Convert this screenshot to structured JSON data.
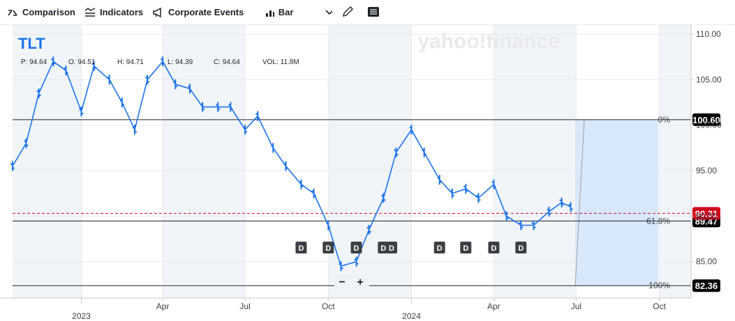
{
  "toolbar": {
    "comparison": "Comparison",
    "indicators": "Indicators",
    "corporate_events": "Corporate Events",
    "chart_type": "Bar"
  },
  "watermark": "yahoo!finance",
  "symbol": "TLT",
  "ohlc": {
    "o": "O: 94.64",
    "h": "H: 94.71",
    "l": "L: 94.39",
    "c": "C: 94.64",
    "vol": "VOL: 11.8M",
    "p_label": "P: 94.64",
    "o2": "O: 94.51"
  },
  "zoom": {
    "minus": "−",
    "plus": "+"
  },
  "chart_data": {
    "type": "line",
    "chart_style": "ohlc-bar",
    "title": "",
    "ylim": [
      81,
      111
    ],
    "y_ticks": [
      "110.00",
      "105.00",
      "100.00",
      "95.00",
      "90.00",
      "85.00"
    ],
    "y_tick_values": [
      110,
      105,
      100,
      95,
      90,
      85
    ],
    "x_ticks": [
      "Apr",
      "Jul",
      "Oct",
      "Apr",
      "Jul",
      "Oct"
    ],
    "x_year_labels": [
      "2023",
      "2024"
    ],
    "x_range": [
      "2022-10-17",
      "2024-11-05"
    ],
    "x_tick_dates": [
      "2023-04-01",
      "2023-07-01",
      "2023-10-01",
      "2024-04-01",
      "2024-07-01",
      "2024-10-01"
    ],
    "x_year_dates": [
      "2023-01-01",
      "2024-01-01"
    ],
    "series": [
      {
        "x": [
          "2022-10-17",
          "2022-11-01",
          "2022-11-15",
          "2022-12-01",
          "2022-12-15",
          "2023-01-01",
          "2023-01-15",
          "2023-02-01",
          "2023-02-15",
          "2023-03-01",
          "2023-03-15",
          "2023-04-01",
          "2023-04-15",
          "2023-05-01",
          "2023-05-15",
          "2023-06-01",
          "2023-06-15",
          "2023-07-01",
          "2023-07-15",
          "2023-08-01",
          "2023-08-15",
          "2023-09-01",
          "2023-09-15",
          "2023-10-01",
          "2023-10-15",
          "2023-11-01",
          "2023-11-15",
          "2023-12-01",
          "2023-12-15",
          "2024-01-01",
          "2024-01-15",
          "2024-02-01",
          "2024-02-15",
          "2024-03-01",
          "2024-03-15",
          "2024-04-01",
          "2024-04-15",
          "2024-05-01",
          "2024-05-15",
          "2024-06-01",
          "2024-06-15",
          "2024-06-25"
        ],
        "values": [
          95.5,
          98.0,
          103.5,
          107.0,
          106.0,
          101.5,
          106.5,
          105.0,
          102.5,
          99.5,
          105.0,
          107.0,
          104.5,
          104.0,
          102.0,
          102.0,
          102.0,
          99.5,
          101.0,
          97.5,
          95.5,
          93.5,
          92.5,
          89.0,
          84.5,
          85.0,
          88.5,
          92.0,
          97.0,
          99.5,
          97.0,
          94.0,
          92.5,
          93.0,
          92.0,
          93.5,
          90.0,
          89.0,
          89.0,
          90.5,
          91.5,
          91.0
        ]
      }
    ],
    "horizontal_levels": [
      {
        "label": "0%",
        "value": 100.6,
        "badge": "100.60"
      },
      {
        "label": "61.8%",
        "value": 89.47,
        "badge": "89.47"
      },
      {
        "label": "100%",
        "value": 82.36,
        "badge": "82.36"
      }
    ],
    "last_price": {
      "value": 90.31,
      "badge": "90.31"
    },
    "dividend_marker_label": "D",
    "dividend_dates": [
      "2023-09-01",
      "2023-10-01",
      "2023-11-01",
      "2023-12-01",
      "2023-12-10",
      "2024-02-01",
      "2024-03-01",
      "2024-04-01",
      "2024-05-01"
    ],
    "colors": {
      "line": "#1a73e8",
      "price_badge": "#d0021b",
      "level_badge": "#000000",
      "fib_zone": "#d8e8fb",
      "shade": "#f1f5f9"
    }
  }
}
